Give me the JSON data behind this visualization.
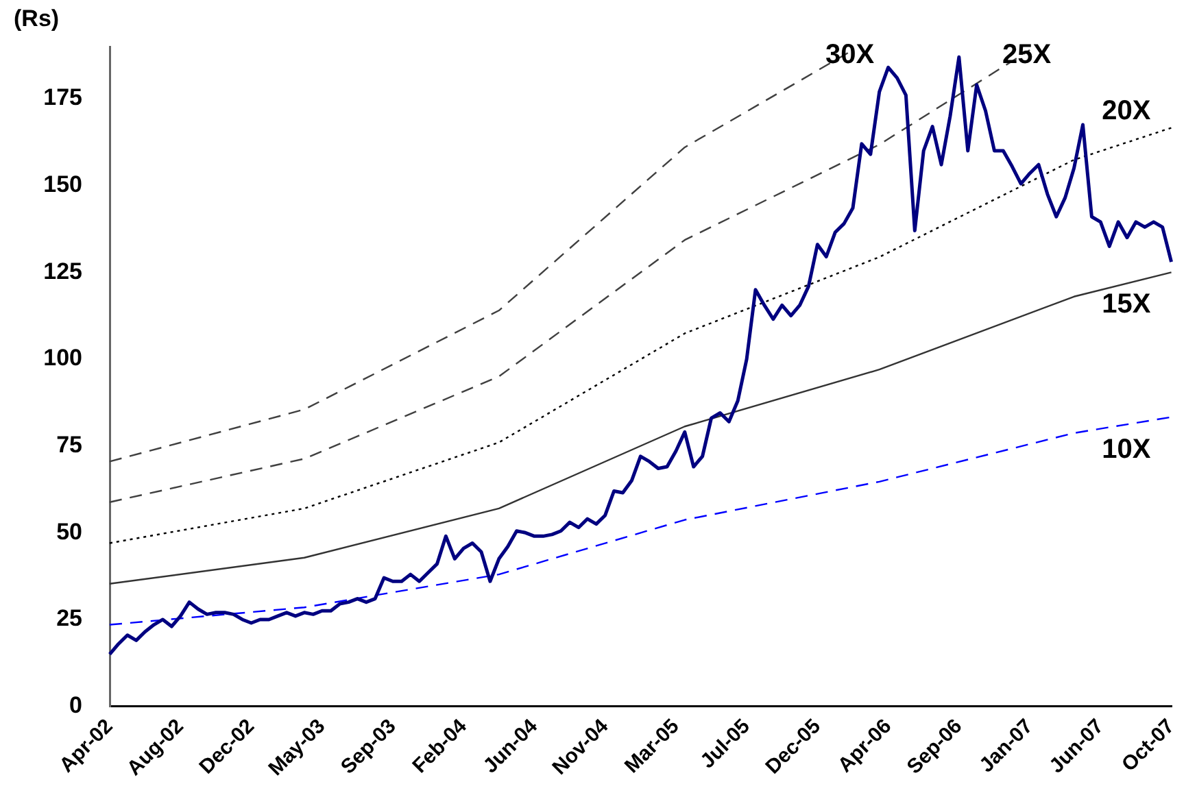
{
  "chart_data": {
    "type": "line",
    "ylabel": "(Rs)",
    "categories": [
      "Apr-02",
      null,
      null,
      null,
      null,
      null,
      null,
      null,
      "Aug-02",
      null,
      null,
      null,
      null,
      null,
      null,
      null,
      "Dec-02",
      null,
      null,
      null,
      null,
      null,
      null,
      null,
      "May-03",
      null,
      null,
      null,
      null,
      null,
      null,
      null,
      "Sep-03",
      null,
      null,
      null,
      null,
      null,
      null,
      null,
      "Feb-04",
      null,
      null,
      null,
      null,
      null,
      null,
      null,
      "Jun-04",
      null,
      null,
      null,
      null,
      null,
      null,
      null,
      "Nov-04",
      null,
      null,
      null,
      null,
      null,
      null,
      null,
      "Mar-05",
      null,
      null,
      null,
      null,
      null,
      null,
      null,
      "Jul-05",
      null,
      null,
      null,
      null,
      null,
      null,
      null,
      "Dec-05",
      null,
      null,
      null,
      null,
      null,
      null,
      null,
      "Apr-06",
      null,
      null,
      null,
      null,
      null,
      null,
      null,
      "Sep-06",
      null,
      null,
      null,
      null,
      null,
      null,
      null,
      "Jan-07",
      null,
      null,
      null,
      null,
      null,
      null,
      null,
      "Jun-07",
      null,
      null,
      null,
      null,
      null,
      null,
      null,
      "Oct-07"
    ],
    "ylim": [
      0,
      190
    ],
    "yticks": [
      0,
      25,
      50,
      75,
      100,
      125,
      150,
      175
    ],
    "grid": false,
    "legend": false,
    "marker": "none",
    "series": [
      {
        "name": "30X",
        "color": "#404040",
        "line_style": "dashed",
        "values": [
          70.5,
          null,
          null,
          null,
          null,
          null,
          null,
          null,
          null,
          null,
          null,
          null,
          null,
          null,
          null,
          null,
          null,
          null,
          null,
          null,
          null,
          null,
          85.5,
          null,
          null,
          null,
          null,
          null,
          null,
          null,
          null,
          null,
          null,
          null,
          null,
          null,
          null,
          null,
          null,
          null,
          null,
          null,
          null,
          null,
          114,
          null,
          null,
          null,
          null,
          null,
          null,
          null,
          null,
          null,
          null,
          null,
          null,
          null,
          null,
          null,
          null,
          null,
          null,
          null,
          null,
          161,
          null,
          null,
          null,
          null,
          null,
          null,
          null,
          null,
          null,
          null,
          null,
          null,
          null,
          null,
          null,
          null,
          null,
          null,
          189,
          null,
          null,
          null,
          null,
          null,
          null,
          null,
          null,
          null,
          null,
          null,
          null,
          null,
          null,
          null,
          null,
          null,
          null,
          null,
          null,
          null,
          null,
          null,
          null,
          null,
          null,
          null,
          null,
          null,
          null,
          null,
          null,
          null,
          null,
          null,
          null
        ]
      },
      {
        "name": "25X",
        "color": "#404040",
        "line_style": "dashed",
        "values": [
          58.8,
          null,
          null,
          null,
          null,
          null,
          null,
          null,
          null,
          null,
          null,
          null,
          null,
          null,
          null,
          null,
          null,
          null,
          null,
          null,
          null,
          null,
          71.3,
          null,
          null,
          null,
          null,
          null,
          null,
          null,
          null,
          null,
          null,
          null,
          null,
          null,
          null,
          null,
          null,
          null,
          null,
          null,
          null,
          null,
          95,
          null,
          null,
          null,
          null,
          null,
          null,
          null,
          null,
          null,
          null,
          null,
          null,
          null,
          null,
          null,
          null,
          null,
          null,
          null,
          null,
          134.3,
          null,
          null,
          null,
          null,
          null,
          null,
          null,
          null,
          null,
          null,
          null,
          null,
          null,
          null,
          null,
          null,
          null,
          null,
          null,
          null,
          null,
          161.8,
          null,
          null,
          null,
          null,
          null,
          null,
          null,
          null,
          null,
          null,
          null,
          null,
          null,
          null,
          null,
          null,
          189,
          null,
          null,
          null,
          null,
          null,
          null,
          null,
          null,
          null,
          null,
          null,
          null,
          null,
          null,
          null,
          null
        ]
      },
      {
        "name": "20X",
        "color": "#000000",
        "line_style": "dotted",
        "values": [
          47,
          null,
          null,
          null,
          null,
          null,
          null,
          null,
          null,
          null,
          null,
          null,
          null,
          null,
          null,
          null,
          null,
          null,
          null,
          null,
          null,
          null,
          57,
          null,
          null,
          null,
          null,
          null,
          null,
          null,
          null,
          null,
          null,
          null,
          null,
          null,
          null,
          null,
          null,
          null,
          null,
          null,
          null,
          null,
          76,
          null,
          null,
          null,
          null,
          null,
          null,
          null,
          null,
          null,
          null,
          null,
          null,
          null,
          null,
          null,
          null,
          null,
          null,
          null,
          null,
          107.4,
          null,
          null,
          null,
          null,
          null,
          null,
          null,
          null,
          null,
          null,
          null,
          null,
          null,
          null,
          null,
          null,
          null,
          null,
          null,
          null,
          null,
          129.4,
          null,
          null,
          null,
          null,
          null,
          null,
          null,
          null,
          null,
          null,
          null,
          null,
          null,
          null,
          null,
          null,
          null,
          null,
          null,
          null,
          null,
          157.4,
          null,
          null,
          null,
          null,
          null,
          null,
          null,
          null,
          null,
          null,
          166.6
        ]
      },
      {
        "name": "15X",
        "color": "#333333",
        "line_style": "solid",
        "values": [
          35.3,
          null,
          null,
          null,
          null,
          null,
          null,
          null,
          null,
          null,
          null,
          null,
          null,
          null,
          null,
          null,
          null,
          null,
          null,
          null,
          null,
          null,
          42.8,
          null,
          null,
          null,
          null,
          null,
          null,
          null,
          null,
          null,
          null,
          null,
          null,
          null,
          null,
          null,
          null,
          null,
          null,
          null,
          null,
          null,
          57,
          null,
          null,
          null,
          null,
          null,
          null,
          null,
          null,
          null,
          null,
          null,
          null,
          null,
          null,
          null,
          null,
          null,
          null,
          null,
          null,
          80.6,
          null,
          null,
          null,
          null,
          null,
          null,
          null,
          null,
          null,
          null,
          null,
          null,
          null,
          null,
          null,
          null,
          null,
          null,
          null,
          null,
          null,
          97,
          null,
          null,
          null,
          null,
          null,
          null,
          null,
          null,
          null,
          null,
          null,
          null,
          null,
          null,
          null,
          null,
          null,
          null,
          null,
          null,
          null,
          118,
          null,
          null,
          null,
          null,
          null,
          null,
          null,
          null,
          null,
          null,
          125
        ]
      },
      {
        "name": "10X",
        "color": "#0000ff",
        "line_style": "dashed",
        "values": [
          23.5,
          null,
          null,
          null,
          null,
          null,
          null,
          null,
          null,
          null,
          null,
          null,
          null,
          null,
          null,
          null,
          null,
          null,
          null,
          null,
          null,
          null,
          28.5,
          null,
          null,
          null,
          null,
          null,
          null,
          null,
          null,
          null,
          null,
          null,
          null,
          null,
          null,
          null,
          null,
          null,
          null,
          null,
          null,
          null,
          38,
          null,
          null,
          null,
          null,
          null,
          null,
          null,
          null,
          null,
          null,
          null,
          null,
          null,
          null,
          null,
          null,
          null,
          null,
          null,
          null,
          53.7,
          null,
          null,
          null,
          null,
          null,
          null,
          null,
          null,
          null,
          null,
          null,
          null,
          null,
          null,
          null,
          null,
          null,
          null,
          null,
          null,
          null,
          64.7,
          null,
          null,
          null,
          null,
          null,
          null,
          null,
          null,
          null,
          null,
          null,
          null,
          null,
          null,
          null,
          null,
          null,
          null,
          null,
          null,
          null,
          78.7,
          null,
          null,
          null,
          null,
          null,
          null,
          null,
          null,
          null,
          null,
          83.3
        ]
      },
      {
        "color": "#000080",
        "line_style": "solid",
        "values": [
          15,
          18,
          20.5,
          19,
          21.5,
          23.5,
          25,
          23,
          26,
          30,
          28,
          26.5,
          27,
          27,
          26.5,
          25,
          24,
          25,
          25,
          26,
          27,
          26,
          27,
          26.5,
          27.5,
          27.5,
          29.5,
          30,
          31,
          30,
          31,
          37,
          36,
          36,
          38,
          36,
          38.5,
          41,
          49,
          42.5,
          45.5,
          47,
          44.5,
          36,
          42.5,
          46,
          50.5,
          50,
          49,
          49,
          49.5,
          50.5,
          53,
          51.5,
          54,
          52.5,
          55,
          62,
          61.5,
          65,
          72,
          70.5,
          68.5,
          69,
          73.5,
          79,
          69,
          72,
          83,
          84.5,
          82,
          88,
          100,
          120,
          115.5,
          111.5,
          115.5,
          112.5,
          115.5,
          121,
          133,
          129.5,
          136.5,
          139,
          143.5,
          162,
          159,
          177,
          184,
          181,
          176,
          137,
          160,
          167,
          156,
          170,
          187,
          160,
          179,
          171.5,
          160,
          160,
          155.5,
          150.5,
          153.5,
          156,
          147.5,
          141,
          146.5,
          155,
          167.5,
          141,
          139.5,
          132.5,
          139.5,
          135,
          139.5,
          138,
          139.5,
          138,
          128
        ]
      }
    ]
  }
}
